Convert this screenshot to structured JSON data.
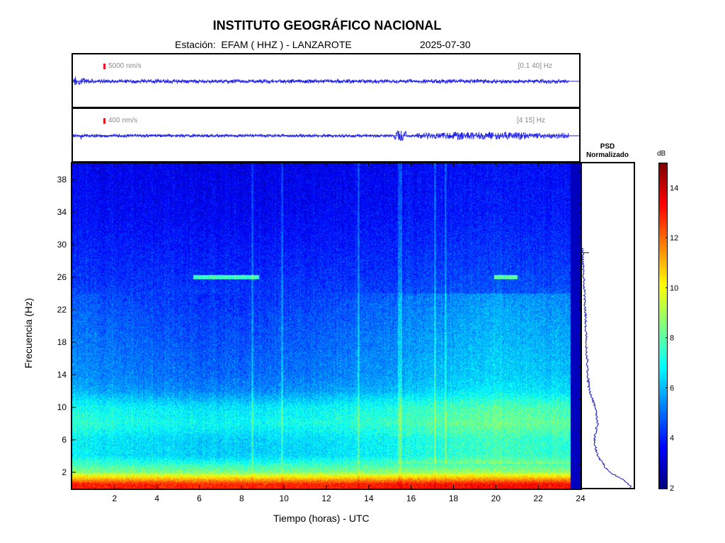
{
  "header": {
    "title": "INSTITUTO GEOGRÁFICO NACIONAL",
    "station_text": "Estación:  EFAM ( HHZ ) - LANZAROTE",
    "date": "2025-07-30"
  },
  "trace_top": {
    "scale_label": "5000 nm/s",
    "band_label": "[0.1 40] Hz",
    "color": "#1f1fe6"
  },
  "trace_bottom": {
    "scale_label": "400 nm/s",
    "band_label": "[4 15] Hz",
    "color": "#1f1fe6"
  },
  "psd_panel": {
    "title_line1": "PSD",
    "title_line2": "Normalizado"
  },
  "colorbar": {
    "unit": "dB",
    "min": 2,
    "max": 15,
    "ticks": [
      "2",
      "4",
      "6",
      "8",
      "10",
      "12",
      "14"
    ]
  },
  "chart_data": {
    "type": "heatmap",
    "title": "INSTITUTO GEOGRÁFICO NACIONAL",
    "xlabel": "Tiempo (horas) - UTC",
    "ylabel": "Frecuencia  (Hz)",
    "xlim": [
      0,
      24
    ],
    "ylim": [
      0,
      40
    ],
    "x_ticks": [
      "2",
      "4",
      "6",
      "8",
      "10",
      "12",
      "14",
      "16",
      "18",
      "20",
      "22",
      "24"
    ],
    "y_ticks": [
      "2",
      "6",
      "10",
      "14",
      "18",
      "22",
      "26",
      "30",
      "34",
      "38"
    ],
    "colorscale": "jet",
    "color_range_db": [
      2,
      15
    ],
    "data_end_hour": 23.5,
    "frequency_profile_db": [
      {
        "f": 0.5,
        "db": 13
      },
      {
        "f": 1,
        "db": 11.5
      },
      {
        "f": 2,
        "db": 8.5
      },
      {
        "f": 4,
        "db": 6.5
      },
      {
        "f": 6,
        "db": 6.5
      },
      {
        "f": 8,
        "db": 7.2
      },
      {
        "f": 10,
        "db": 6.8
      },
      {
        "f": 12,
        "db": 5.6
      },
      {
        "f": 14,
        "db": 5.2
      },
      {
        "f": 18,
        "db": 4.9
      },
      {
        "f": 22,
        "db": 4.6
      },
      {
        "f": 26,
        "db": 4.2
      },
      {
        "f": 30,
        "db": 3.9
      },
      {
        "f": 34,
        "db": 3.6
      },
      {
        "f": 40,
        "db": 3.4
      }
    ],
    "daytime_boost": [
      {
        "t": 0,
        "db": 0.3
      },
      {
        "t": 6,
        "db": -0.3
      },
      {
        "t": 12,
        "db": 0
      },
      {
        "t": 16,
        "db": 0.6
      },
      {
        "t": 20,
        "db": 1.2
      },
      {
        "t": 23.5,
        "db": 0.9
      }
    ],
    "vertical_lines_hours": [
      8.5,
      9.9,
      13.5,
      15.4,
      15.5,
      17.1,
      17.6
    ],
    "tonal_lines": [
      {
        "t_start": 5.7,
        "t_end": 8.8,
        "f": 26
      },
      {
        "t_start": 19.9,
        "t_end": 21.0,
        "f": 26
      }
    ],
    "psd_normalizado": [
      {
        "f": 0.2,
        "v": 1.0
      },
      {
        "f": 1,
        "v": 0.85
      },
      {
        "f": 2,
        "v": 0.55
      },
      {
        "f": 4,
        "v": 0.32
      },
      {
        "f": 6,
        "v": 0.26
      },
      {
        "f": 8,
        "v": 0.33
      },
      {
        "f": 10,
        "v": 0.28
      },
      {
        "f": 12,
        "v": 0.16
      },
      {
        "f": 14,
        "v": 0.13
      },
      {
        "f": 18,
        "v": 0.1
      },
      {
        "f": 22,
        "v": 0.08
      },
      {
        "f": 26,
        "v": 0.05
      },
      {
        "f": 29,
        "v": 0.03
      },
      {
        "f": 30,
        "v": 0.0
      },
      {
        "f": 40,
        "v": 0.0
      }
    ]
  }
}
